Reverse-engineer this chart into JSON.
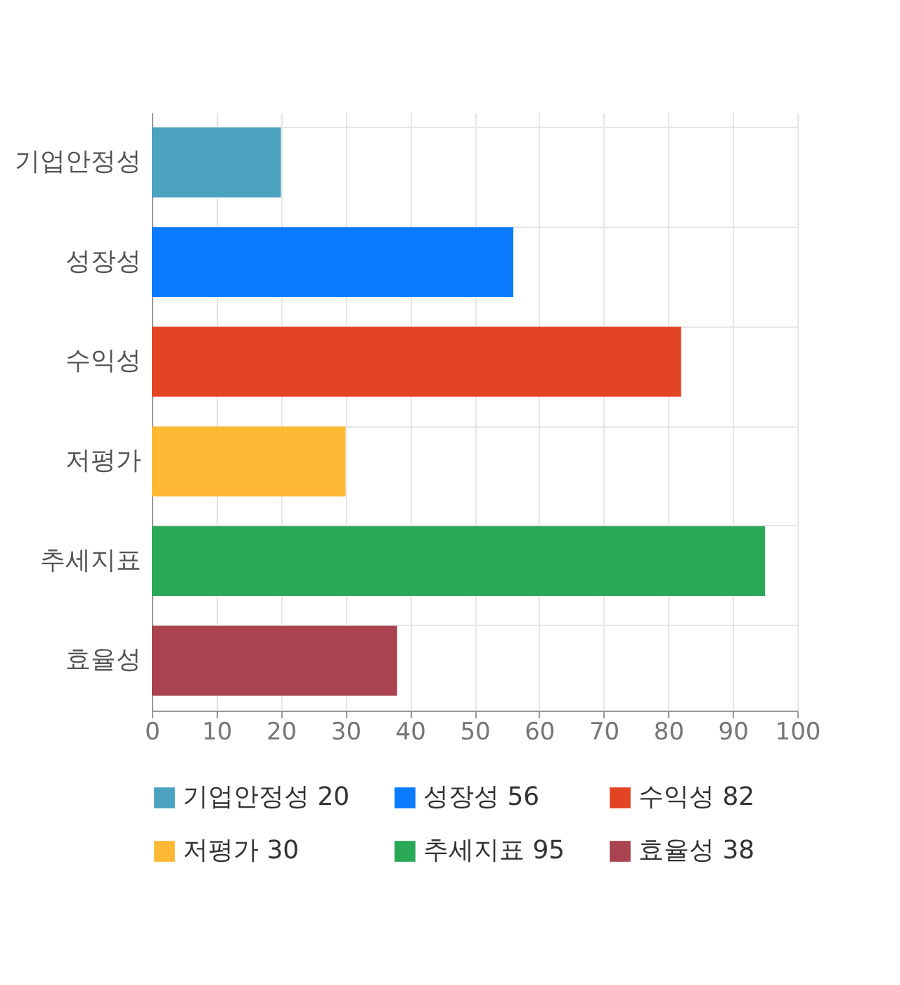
{
  "chart_data": {
    "type": "bar",
    "orientation": "horizontal",
    "stacked": true,
    "categories": [
      "기업안정성",
      "성장성",
      "수익성",
      "저평가",
      "추세지표",
      "효율성"
    ],
    "series": [
      {
        "name": "기업안정성 20",
        "color": "#4ba3bf",
        "values": [
          20,
          null,
          null,
          null,
          null,
          null
        ]
      },
      {
        "name": "성장성 56",
        "color": "#0a7bff",
        "values": [
          null,
          56,
          null,
          null,
          null,
          null
        ]
      },
      {
        "name": "수익성 82",
        "color": "#e34524",
        "values": [
          null,
          null,
          82,
          null,
          null,
          null
        ]
      },
      {
        "name": "저평가 30",
        "color": "#ffb833",
        "values": [
          null,
          null,
          null,
          30,
          null,
          null
        ]
      },
      {
        "name": "추세지표 95",
        "color": "#29a855",
        "values": [
          null,
          null,
          null,
          null,
          95,
          null
        ]
      },
      {
        "name": "효율성 38",
        "color": "#a8434f",
        "values": [
          null,
          null,
          null,
          null,
          null,
          38
        ]
      }
    ],
    "xlim": [
      0,
      100
    ],
    "xticks": [
      0,
      10,
      20,
      30,
      40,
      50,
      60,
      70,
      80,
      90,
      100
    ],
    "grid": true,
    "legend": "bottom"
  }
}
